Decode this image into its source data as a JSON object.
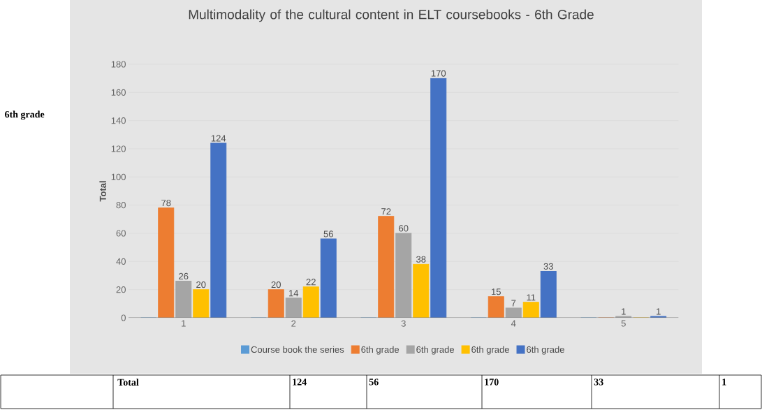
{
  "chart_data": {
    "type": "bar",
    "title": "Multimodality of the cultural content in ELT coursebooks - 6th Grade",
    "ylabel": "Total",
    "categories": [
      "1",
      "2",
      "3",
      "4",
      "5"
    ],
    "series": [
      {
        "name": "Course book the series",
        "color": "#5b9bd5",
        "values": [
          0,
          0,
          0,
          0,
          0
        ],
        "value_labels": [
          null,
          null,
          null,
          null,
          null
        ]
      },
      {
        "name": "6th grade",
        "color": "#ed7d31",
        "values": [
          78,
          20,
          72,
          15,
          0
        ],
        "value_labels": [
          "78",
          "20",
          "72",
          "15",
          null
        ]
      },
      {
        "name": "6th grade",
        "color": "#a5a5a5",
        "values": [
          26,
          14,
          60,
          7,
          1
        ],
        "value_labels": [
          "26",
          "14",
          "60",
          "7",
          "1"
        ]
      },
      {
        "name": "6th grade",
        "color": "#ffc000",
        "values": [
          20,
          22,
          38,
          11,
          0
        ],
        "value_labels": [
          "20",
          "22",
          "38",
          "11",
          null
        ]
      },
      {
        "name": "6th grade",
        "color": "#4472c4",
        "values": [
          124,
          56,
          170,
          33,
          1
        ],
        "value_labels": [
          "124",
          "56",
          "170",
          "33",
          "1"
        ]
      }
    ],
    "ylim": [
      0,
      180
    ],
    "yticks": [
      0,
      20,
      40,
      60,
      80,
      100,
      120,
      140,
      160,
      180
    ],
    "grid": "y",
    "legend": "bottom",
    "annotations": [
      "6th grade",
      "Total",
      "124",
      "56",
      "170",
      "33",
      "1"
    ]
  }
}
